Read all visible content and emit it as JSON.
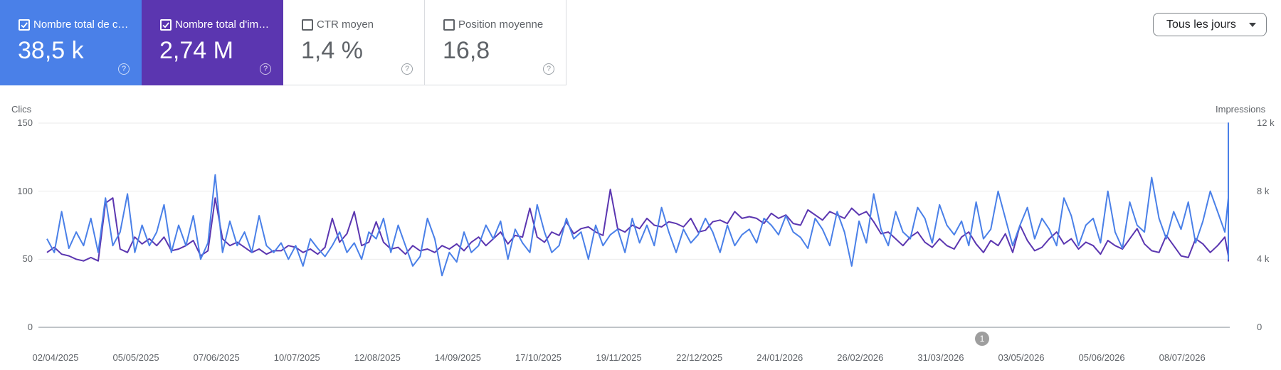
{
  "metrics": [
    {
      "label": "Nombre total de c…",
      "value": "38,5 k",
      "checked": true
    },
    {
      "label": "Nombre total d'im…",
      "value": "2,74 M",
      "checked": true
    },
    {
      "label": "CTR moyen",
      "value": "1,4 %",
      "checked": false
    },
    {
      "label": "Position moyenne",
      "value": "16,8",
      "checked": false
    }
  ],
  "help_glyph": "?",
  "date_filter": {
    "selected": "Tous les jours"
  },
  "chart_data": {
    "type": "line",
    "y_left_label": "Clics",
    "y_right_label": "Impressions",
    "y_left_ticks": [
      "150",
      "100",
      "50",
      "0"
    ],
    "y_right_ticks": [
      "12 k",
      "8 k",
      "4 k",
      "0"
    ],
    "ylim_left": [
      0,
      150
    ],
    "ylim_right": [
      0,
      12000
    ],
    "x_tick_labels": [
      "02/04/2025",
      "05/05/2025",
      "07/06/2025",
      "10/07/2025",
      "12/08/2025",
      "14/09/2025",
      "17/10/2025",
      "19/11/2025",
      "22/12/2025",
      "24/01/2026",
      "26/02/2026",
      "31/03/2026",
      "03/05/2026",
      "05/06/2026",
      "08/07/2026"
    ],
    "x_range": [
      "2025-04-02",
      "2026-07-31"
    ],
    "series": [
      {
        "name": "Clics",
        "axis": "left",
        "color": "#4a80e8",
        "interval_days": 3,
        "values": [
          65,
          55,
          85,
          58,
          70,
          60,
          80,
          55,
          95,
          60,
          70,
          98,
          55,
          75,
          60,
          70,
          90,
          55,
          75,
          60,
          82,
          50,
          62,
          112,
          55,
          78,
          60,
          70,
          55,
          82,
          60,
          55,
          62,
          50,
          60,
          45,
          65,
          58,
          52,
          60,
          70,
          55,
          62,
          50,
          70,
          65,
          80,
          55,
          75,
          60,
          45,
          52,
          80,
          65,
          38,
          55,
          48,
          70,
          55,
          60,
          75,
          65,
          78,
          50,
          72,
          62,
          55,
          90,
          70,
          55,
          60,
          80,
          65,
          70,
          50,
          75,
          60,
          68,
          72,
          55,
          80,
          62,
          75,
          60,
          88,
          70,
          55,
          72,
          62,
          68,
          80,
          70,
          55,
          75,
          60,
          68,
          72,
          62,
          80,
          75,
          68,
          82,
          70,
          66,
          58,
          80,
          72,
          60,
          85,
          70,
          45,
          78,
          62,
          98,
          72,
          60,
          85,
          70,
          65,
          88,
          80,
          62,
          90,
          75,
          68,
          78,
          60,
          92,
          65,
          72,
          100,
          80,
          60,
          75,
          88,
          65,
          80,
          72,
          60,
          95,
          82,
          60,
          75,
          80,
          62,
          100,
          70,
          58,
          92,
          75,
          70,
          110,
          80,
          65,
          85,
          72,
          92,
          62,
          78,
          100,
          85,
          70,
          95,
          58,
          105,
          80,
          70,
          60,
          90,
          75,
          150,
          65,
          80,
          105,
          90,
          70,
          85,
          65,
          98,
          80,
          62,
          95,
          72,
          68,
          102,
          78,
          62,
          88,
          75,
          70,
          95,
          80,
          65,
          90,
          72,
          68,
          82,
          75,
          62,
          80,
          60,
          70,
          85,
          55,
          75,
          60,
          65,
          80,
          55,
          60,
          75,
          70,
          60,
          55,
          80,
          62,
          58,
          75,
          50,
          65,
          55,
          80,
          60,
          95,
          75,
          112,
          80,
          70,
          95,
          115,
          85,
          72,
          130,
          100,
          85,
          140,
          144,
          88,
          100,
          122,
          90,
          110,
          118,
          95,
          88,
          102,
          75,
          115,
          125,
          90,
          85,
          108,
          70,
          118,
          100,
          80,
          110,
          82,
          75,
          100,
          85,
          128,
          75,
          90,
          105,
          70,
          125,
          100,
          88,
          118,
          82,
          95,
          120,
          80,
          105,
          90,
          68,
          85,
          75,
          100,
          65,
          90,
          78,
          60,
          82,
          70,
          60,
          95,
          85,
          62,
          72,
          65,
          80,
          58,
          70,
          112,
          72,
          58,
          90,
          75,
          65,
          85,
          70,
          60,
          80,
          60,
          72,
          65,
          55,
          78,
          62,
          70,
          118,
          80,
          72,
          65,
          80,
          68,
          75,
          62,
          85,
          60,
          70,
          58,
          75,
          68,
          90,
          60,
          80,
          65,
          70,
          88,
          60,
          75,
          68,
          62,
          100,
          80,
          60,
          75,
          65,
          70,
          58,
          72,
          68,
          80,
          62,
          58,
          85,
          62,
          72,
          60,
          90,
          70,
          55,
          82,
          62,
          78,
          58,
          72,
          60,
          85,
          62,
          92,
          70,
          65,
          108,
          80,
          85,
          75,
          100,
          90,
          88,
          110,
          95,
          85,
          118,
          92,
          125,
          110,
          95,
          100,
          138,
          100,
          85,
          110,
          92,
          122,
          105,
          130,
          140,
          100,
          120,
          105,
          135,
          140,
          95,
          88,
          100,
          135,
          110,
          95,
          125,
          100,
          122
        ]
      },
      {
        "name": "Impressions",
        "axis": "right",
        "color": "#5b36b0",
        "interval_days": 3,
        "values": [
          4400,
          4700,
          4300,
          4200,
          4000,
          3900,
          4100,
          3900,
          7300,
          7600,
          4600,
          4400,
          5300,
          4900,
          5200,
          4800,
          5300,
          4500,
          4600,
          4800,
          5100,
          4200,
          4500,
          7600,
          5200,
          4800,
          5000,
          4700,
          4400,
          4600,
          4300,
          4500,
          4500,
          4800,
          4700,
          4400,
          4600,
          4300,
          4700,
          6400,
          5000,
          5500,
          6800,
          4800,
          5000,
          6200,
          5000,
          4600,
          4700,
          4300,
          4800,
          4500,
          4600,
          4400,
          4800,
          4600,
          4900,
          4500,
          5000,
          5300,
          4800,
          5200,
          5600,
          4900,
          5400,
          5300,
          7000,
          5300,
          5000,
          5600,
          5400,
          6200,
          5500,
          5800,
          5900,
          5600,
          5400,
          8100,
          5800,
          5600,
          6000,
          5800,
          6400,
          6000,
          5900,
          6200,
          6100,
          5900,
          6400,
          5600,
          5700,
          6200,
          6300,
          6100,
          6800,
          6400,
          6500,
          6400,
          6100,
          6700,
          6400,
          6600,
          6100,
          6000,
          6900,
          6600,
          6300,
          6800,
          6600,
          6400,
          7000,
          6600,
          6800,
          6200,
          5500,
          5600,
          5200,
          4800,
          5300,
          5600,
          5000,
          4700,
          5200,
          4800,
          4600,
          5300,
          5600,
          4900,
          4400,
          5100,
          4800,
          5500,
          4400,
          6000,
          5100,
          4500,
          4700,
          5200,
          5600,
          4900,
          5200,
          4600,
          5000,
          4800,
          4300,
          5100,
          4800,
          4600,
          5200,
          5800,
          4900,
          4500,
          4400,
          5400,
          4800,
          4200,
          4100,
          5200,
          4900,
          4400,
          4800,
          5300,
          4200,
          4100,
          4700,
          5000,
          4300,
          5700,
          4300,
          4200,
          4500,
          4700,
          5000,
          4400,
          4200,
          4700,
          5300,
          4600,
          4100,
          4000,
          4600,
          4300,
          4800,
          4400,
          4700,
          4100,
          4400,
          4900,
          4200,
          4600,
          3900,
          4500,
          4800,
          4200,
          4600,
          4400,
          4800,
          4200,
          4700,
          4500,
          5200,
          4400,
          3900,
          4300,
          4800,
          4500,
          4100,
          4600,
          5200,
          6400,
          5200,
          5800,
          6800,
          5600,
          6200,
          7600,
          6800,
          6000,
          6600,
          7200,
          5800,
          6000,
          5600,
          7200,
          6500,
          6000,
          5400,
          6200,
          6400,
          7800,
          6000,
          6100,
          6400,
          7000,
          6600,
          6300,
          8800,
          6400,
          7700,
          8200,
          7200,
          6800,
          7600,
          8300,
          7600,
          6700,
          6100,
          6400,
          9800,
          7400,
          6600,
          5800,
          6200,
          6900,
          6400,
          6800,
          7200,
          7600,
          6400,
          6000,
          6800,
          7400,
          6100,
          5900,
          6700,
          7200,
          6000,
          5600,
          5800,
          6200,
          6800,
          5600,
          5800,
          6400,
          6000,
          5900,
          6500,
          6400,
          6000,
          7100,
          6800,
          6200,
          6700,
          5800,
          6000,
          6200,
          6700,
          6400,
          5800,
          6800,
          6100,
          6700,
          5600,
          5900,
          6300,
          5600,
          6100,
          6700,
          5900,
          6500,
          6200,
          7400,
          6400,
          6800,
          6100,
          6700,
          7600,
          6600,
          5900,
          6300,
          6700,
          5800,
          6400,
          5700,
          6000,
          6300,
          7000,
          6400,
          6800,
          6200,
          7200,
          6700,
          6500,
          6000,
          6200,
          6600,
          6900,
          6000,
          6200,
          5800,
          5600,
          6300,
          6000,
          5500,
          5700,
          6100,
          5800,
          5300,
          5600,
          5000,
          5200,
          5800,
          5600,
          6000,
          5700,
          5800,
          6100,
          5600,
          5900,
          6200,
          6400,
          6900,
          6000,
          6600,
          6200,
          5600,
          5900,
          6400,
          5800,
          6200,
          6300,
          6600,
          6200,
          6500,
          6300,
          6900,
          6000,
          6400,
          7200,
          6800,
          7400,
          7000,
          8600,
          7600,
          8000,
          7400,
          7200,
          8000,
          7600,
          9000,
          8600,
          7700,
          7800,
          8200,
          7600,
          8000,
          8400,
          7800,
          8600,
          7400,
          7700,
          8000,
          8300,
          7900,
          8100,
          7400,
          9400,
          8400,
          7800,
          8700,
          9200,
          8200,
          8500,
          9600,
          8800,
          7800,
          8200,
          7600,
          9200,
          8600,
          8100,
          7700,
          8000
        ]
      }
    ],
    "annotation_marker": "1",
    "grid": true
  }
}
